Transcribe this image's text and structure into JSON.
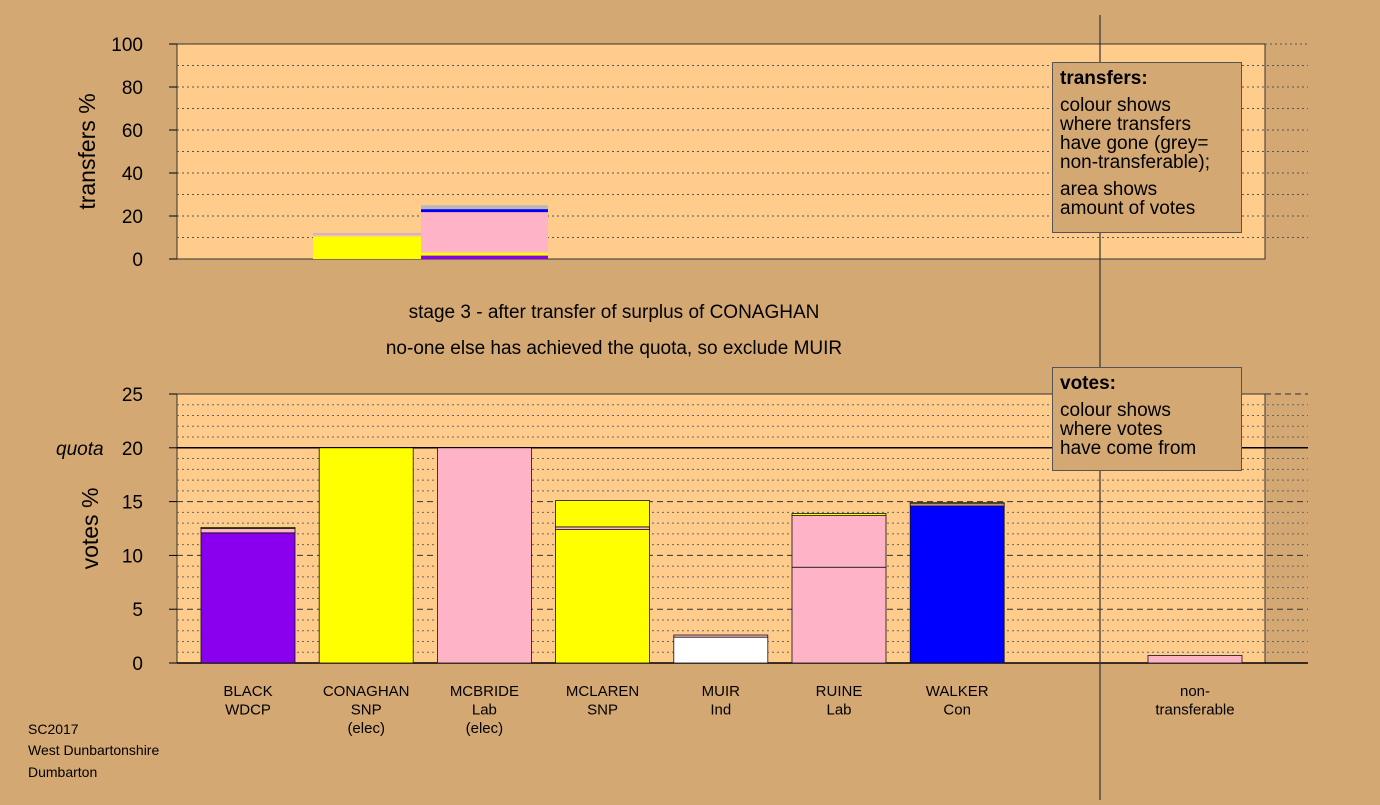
{
  "chart_data": [
    {
      "type": "bar",
      "stacked": true,
      "ylabel": "transfers %",
      "ylim": [
        0,
        100
      ],
      "yticks": [
        "0",
        "20",
        "40",
        "60",
        "80",
        "100"
      ],
      "grid": true,
      "bars": [
        {
          "candidate": "CONAGHAN",
          "segments": [
            {
              "value": 10.5,
              "color": "#ffff00"
            },
            {
              "value": 0.8,
              "color": "#ffb3c6"
            },
            {
              "value": 0.7,
              "color": "#b8b8b8"
            }
          ]
        },
        {
          "candidate": "MCBRIDE",
          "segments": [
            {
              "value": 1.6,
              "color": "#8800ee"
            },
            {
              "value": 1.4,
              "color": "#ffff00"
            },
            {
              "value": 18.8,
              "color": "#ffb3c6"
            },
            {
              "value": 1.4,
              "color": "#0000ff"
            },
            {
              "value": 1.8,
              "color": "#b8b8b8"
            }
          ]
        }
      ],
      "legend": {
        "title": "transfers:",
        "lines1": [
          "colour shows",
          "where transfers",
          "have gone (grey=",
          "non-transferable);"
        ],
        "lines2": [
          "area shows",
          "amount of votes"
        ]
      }
    },
    {
      "type": "bar",
      "stacked": true,
      "ylabel": "votes %",
      "ylim": [
        0,
        25
      ],
      "yticks": [
        "0",
        "5",
        "10",
        "15",
        "20",
        "25"
      ],
      "quota": {
        "label": "quota",
        "value": 20
      },
      "grid": true,
      "categories": [
        {
          "lines": [
            "BLACK",
            "WDCP"
          ],
          "segments": [
            {
              "value": 12.1,
              "color": "#8800ee"
            },
            {
              "value": 0.4,
              "color": "#ffb3c6"
            },
            {
              "value": 0.1,
              "color": "#ffff00"
            }
          ]
        },
        {
          "lines": [
            "CONAGHAN",
            "SNP",
            "(elec)"
          ],
          "segments": [
            {
              "value": 20.0,
              "color": "#ffff00"
            }
          ]
        },
        {
          "lines": [
            "MCBRIDE",
            "Lab",
            "(elec)"
          ],
          "segments": [
            {
              "value": 20.0,
              "color": "#ffb3c6"
            }
          ]
        },
        {
          "lines": [
            "MCLAREN",
            "SNP"
          ],
          "segments": [
            {
              "value": 12.4,
              "color": "#ffff00"
            },
            {
              "value": 0.25,
              "color": "#ffb3c6"
            },
            {
              "value": 2.45,
              "color": "#ffff00"
            }
          ]
        },
        {
          "lines": [
            "MUIR",
            "Ind"
          ],
          "segments": [
            {
              "value": 2.4,
              "color": "#ffffff"
            },
            {
              "value": 0.2,
              "color": "#ffb3c6"
            }
          ]
        },
        {
          "lines": [
            "RUINE",
            "Lab"
          ],
          "segments": [
            {
              "value": 8.9,
              "color": "#ffb3c6"
            },
            {
              "value": 4.8,
              "color": "#ffb3c6"
            },
            {
              "value": 0.2,
              "color": "#ffff00"
            }
          ]
        },
        {
          "lines": [
            "WALKER",
            "Con"
          ],
          "segments": [
            {
              "value": 14.6,
              "color": "#0000ff"
            },
            {
              "value": 0.2,
              "color": "#ffb3c6"
            },
            {
              "value": 0.1,
              "color": "#ffff00"
            }
          ]
        }
      ],
      "nontransferable": {
        "lines": [
          "non-",
          "transferable"
        ],
        "value": 0.7,
        "color": "#ffb3c6"
      },
      "legend": {
        "title": "votes:",
        "lines": [
          "colour shows",
          "where votes",
          "have come from"
        ]
      }
    }
  ],
  "stage_title": "stage 3 - after transfer of surplus of CONAGHAN",
  "stage_subtitle": "no-one else has achieved the quota, so exclude MUIR",
  "source_lines": [
    "SC2017",
    "West Dunbartonshire",
    "Dumbarton"
  ],
  "colors": {
    "background": "#d4a873",
    "plot_bg": "#ffcc8c"
  }
}
